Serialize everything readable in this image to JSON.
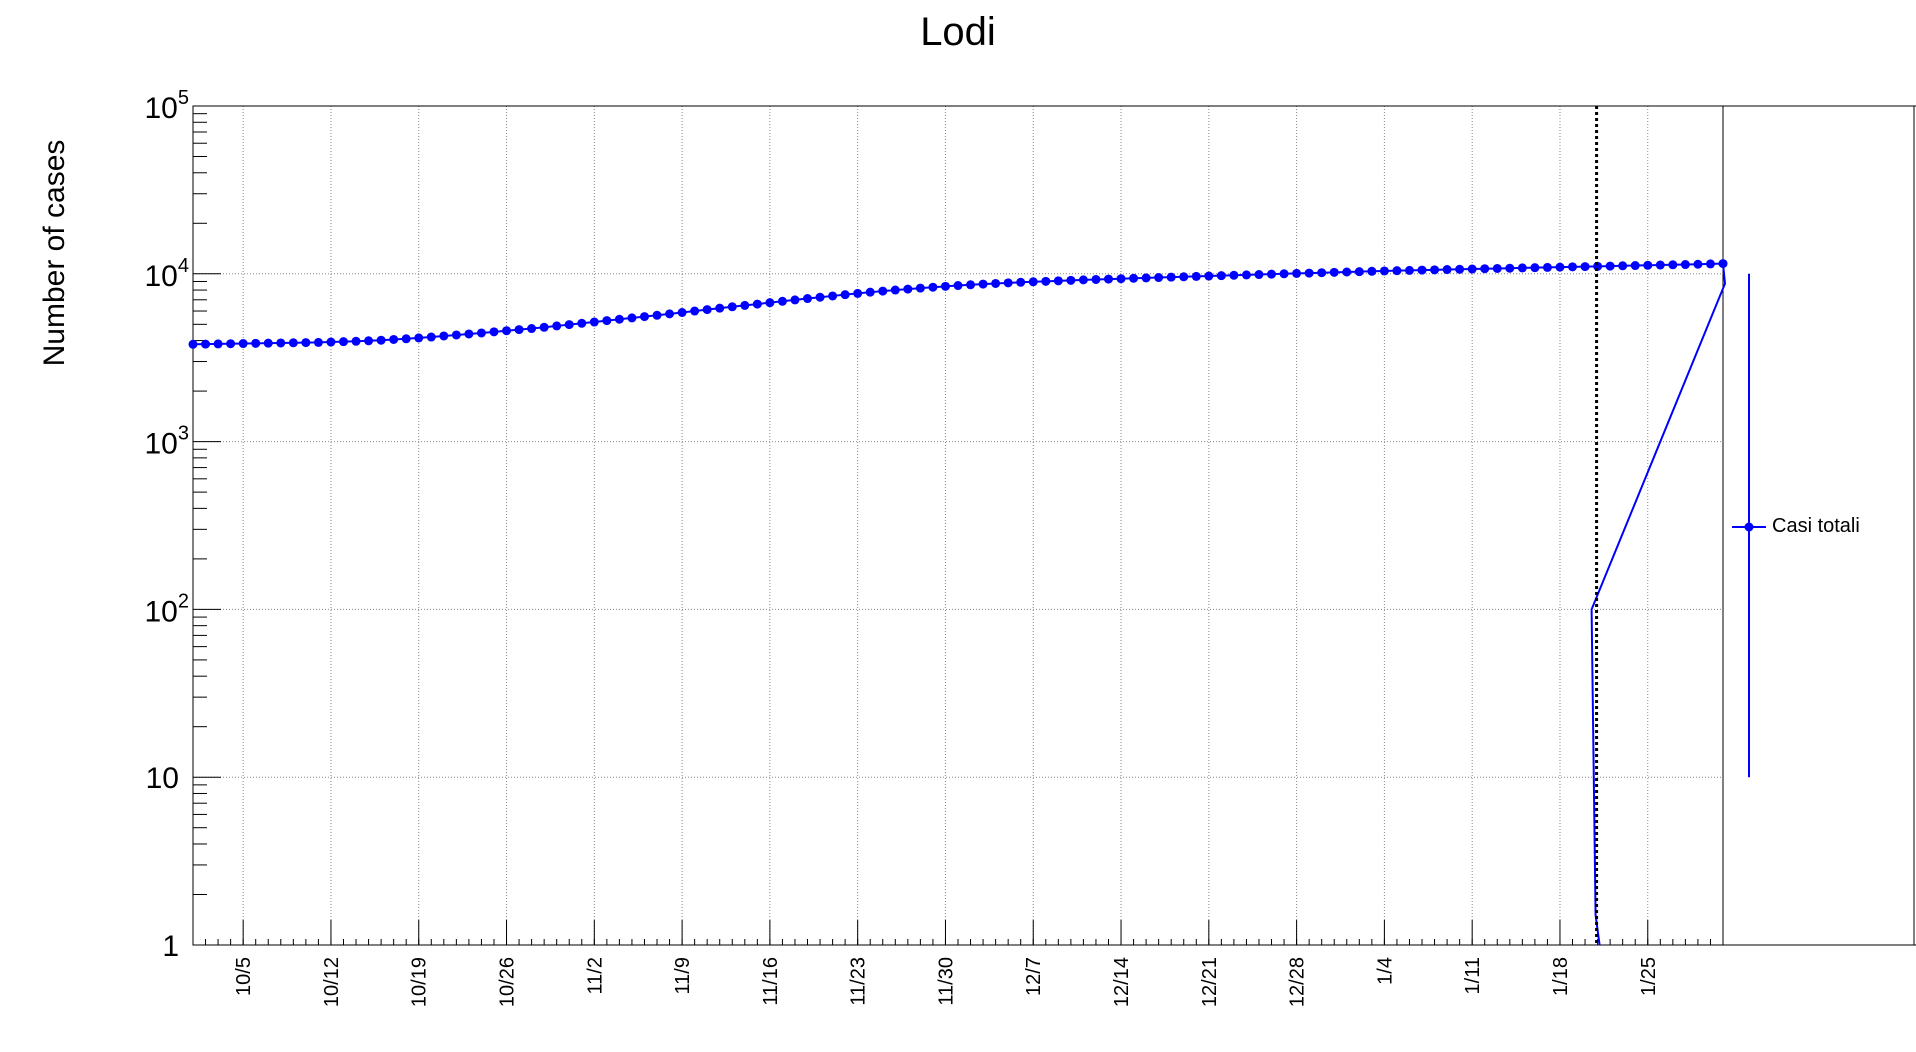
{
  "chart_data": {
    "type": "line",
    "title": "Lodi",
    "xlabel": "",
    "ylabel": "Number of cases",
    "y_scale": "log",
    "ylim": [
      1,
      100000
    ],
    "y_tick_labels": [
      {
        "value": 1,
        "label": "1"
      },
      {
        "value": 10,
        "label": "10"
      },
      {
        "value": 100,
        "base": "10",
        "exp": "2"
      },
      {
        "value": 1000,
        "base": "10",
        "exp": "3"
      },
      {
        "value": 10000,
        "base": "10",
        "exp": "4"
      },
      {
        "value": 100000,
        "base": "10",
        "exp": "5"
      }
    ],
    "x_range": [
      "2020-10-01",
      "2021-01-31"
    ],
    "x_tick_labels": [
      "10/5",
      "10/12",
      "10/19",
      "10/26",
      "11/2",
      "11/9",
      "11/16",
      "11/23",
      "11/30",
      "12/7",
      "12/14",
      "12/21",
      "12/28",
      "1/4",
      "1/11",
      "1/18",
      "1/25"
    ],
    "x_tick_dates": [
      "2020-10-05",
      "2020-10-12",
      "2020-10-19",
      "2020-10-26",
      "2020-11-02",
      "2020-11-09",
      "2020-11-16",
      "2020-11-23",
      "2020-11-30",
      "2020-12-07",
      "2020-12-14",
      "2020-12-21",
      "2020-12-28",
      "2021-01-04",
      "2021-01-11",
      "2021-01-18",
      "2021-01-25"
    ],
    "grid": true,
    "vertical_marker_date": "2021-01-21",
    "legend": {
      "placement": "right",
      "entries": [
        "Casi totali"
      ]
    },
    "series": [
      {
        "name": "Casi totali",
        "color": "#0000ff",
        "marker": "circle",
        "x_start": "2020-10-01",
        "x_step_days": 1,
        "values": [
          3800,
          3810,
          3820,
          3830,
          3840,
          3850,
          3860,
          3870,
          3880,
          3890,
          3900,
          3920,
          3940,
          3960,
          3990,
          4020,
          4060,
          4100,
          4150,
          4200,
          4260,
          4320,
          4380,
          4440,
          4510,
          4580,
          4650,
          4720,
          4800,
          4890,
          4980,
          5070,
          5160,
          5260,
          5360,
          5460,
          5560,
          5660,
          5770,
          5880,
          6000,
          6120,
          6240,
          6360,
          6480,
          6600,
          6730,
          6860,
          6990,
          7120,
          7250,
          7380,
          7510,
          7640,
          7770,
          7890,
          8000,
          8110,
          8220,
          8320,
          8420,
          8510,
          8600,
          8680,
          8760,
          8830,
          8900,
          8960,
          9020,
          9080,
          9140,
          9200,
          9250,
          9300,
          9350,
          9400,
          9450,
          9500,
          9550,
          9600,
          9650,
          9700,
          9750,
          9800,
          9850,
          9900,
          9950,
          10000,
          10050,
          10100,
          10150,
          10200,
          10250,
          10300,
          10350,
          10400,
          10440,
          10480,
          10520,
          10560,
          10600,
          10640,
          10680,
          10720,
          10760,
          10800,
          10840,
          10880,
          10920,
          10960,
          11000,
          11040,
          11080,
          11120,
          11160,
          11200,
          11240,
          11280,
          11320,
          11360,
          11400,
          11450,
          11500
        ]
      }
    ]
  }
}
